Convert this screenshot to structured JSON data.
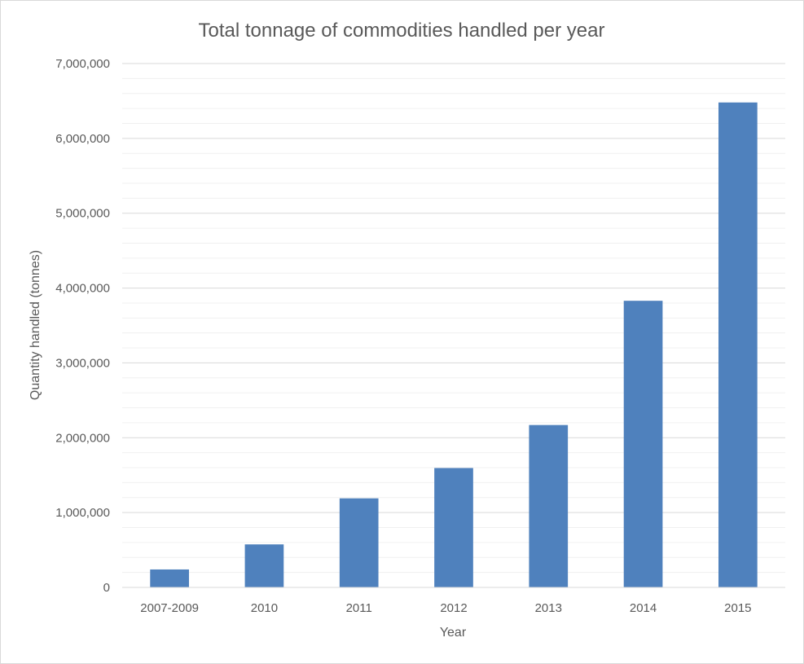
{
  "chart_data": {
    "type": "bar",
    "title": "Total tonnage of commodities handled per year",
    "xlabel": "Year",
    "ylabel": "Quantity handled (tonnes)",
    "categories": [
      "2007-2009",
      "2010",
      "2011",
      "2012",
      "2013",
      "2014",
      "2015"
    ],
    "values": [
      240000,
      575000,
      1190000,
      1595000,
      2170000,
      3830000,
      6480000
    ],
    "ylim": [
      0,
      7000000
    ],
    "yticks": [
      0,
      1000000,
      2000000,
      3000000,
      4000000,
      5000000,
      6000000,
      7000000
    ],
    "ytick_labels": [
      "0",
      "1,000,000",
      "2,000,000",
      "3,000,000",
      "4,000,000",
      "5,000,000",
      "6,000,000",
      "7,000,000"
    ],
    "grid": true,
    "minor_grid": true,
    "legend": "none",
    "bar_color": "#4f81bd",
    "gridline_color": "#d9d9d9",
    "text_color": "#595959"
  }
}
